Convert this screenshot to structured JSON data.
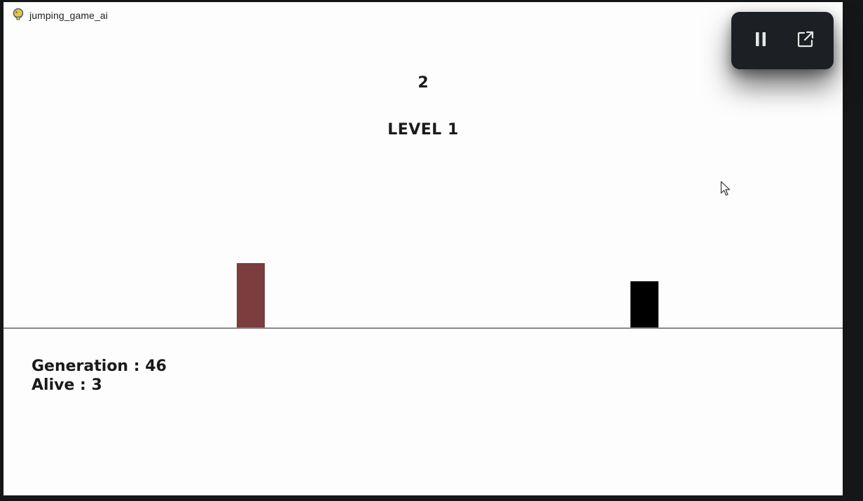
{
  "window": {
    "title": "jumping_game_ai",
    "app_icon": "pygame-snake-icon"
  },
  "game": {
    "score": "2",
    "level_label": "LEVEL 1",
    "generation_label": "Generation : 46",
    "alive_label": "Alive : 3",
    "player_color": "#7b3d3d",
    "obstacle_color": "#000000"
  },
  "overlay": {
    "pause_icon": "pause-icon",
    "popout_icon": "external-link-icon"
  },
  "colors": {
    "background": "#fdfdfd",
    "frame": "#141618",
    "overlay_bg": "#1c1f24"
  }
}
